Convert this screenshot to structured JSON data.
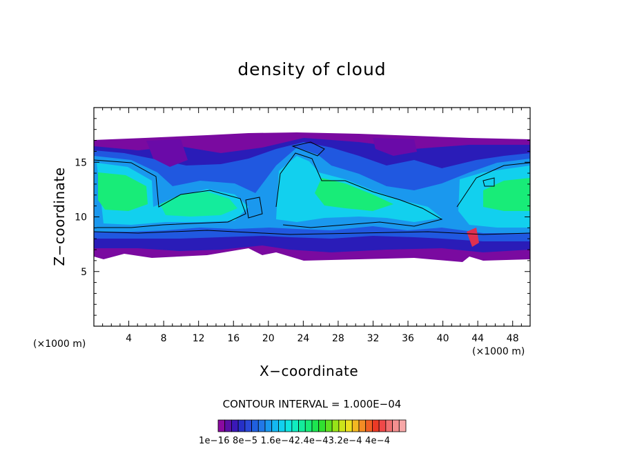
{
  "chart_data": {
    "type": "heatmap",
    "title": "density of cloud",
    "xlabel": "X−coordinate",
    "ylabel": "Z−coordinate",
    "x_unit_label": "(×1000 m)",
    "z_unit_label": "(×1000 m)",
    "xlim": [
      0,
      50
    ],
    "ylim": [
      0,
      20
    ],
    "x_ticks": [
      4,
      8,
      12,
      16,
      20,
      24,
      28,
      32,
      36,
      40,
      44,
      48
    ],
    "y_ticks": [
      5,
      10,
      15
    ],
    "contour_interval_label": "CONTOUR INTERVAL = 1.000E−04",
    "colorbar_labels": "1e−16  8e−5  1.6e−42.4e−43.2e−4  4e−4",
    "colorbar_colors": [
      "#8a0aa0",
      "#5a10a6",
      "#3a18b8",
      "#2630c8",
      "#2a48d8",
      "#2060e0",
      "#2278e8",
      "#1a98ee",
      "#14b8f2",
      "#12d0ee",
      "#10e4e0",
      "#10ecc0",
      "#14ec9c",
      "#18ec78",
      "#1ce650",
      "#30e030",
      "#60e020",
      "#98e418",
      "#cce41a",
      "#ece020",
      "#f4b822",
      "#f48c24",
      "#f06024",
      "#ec3a26",
      "#f04848",
      "#f07070",
      "#f49090",
      "#f8a8a8"
    ],
    "cloud_base_km": 6.5,
    "cloud_top_km": 17.2
  }
}
